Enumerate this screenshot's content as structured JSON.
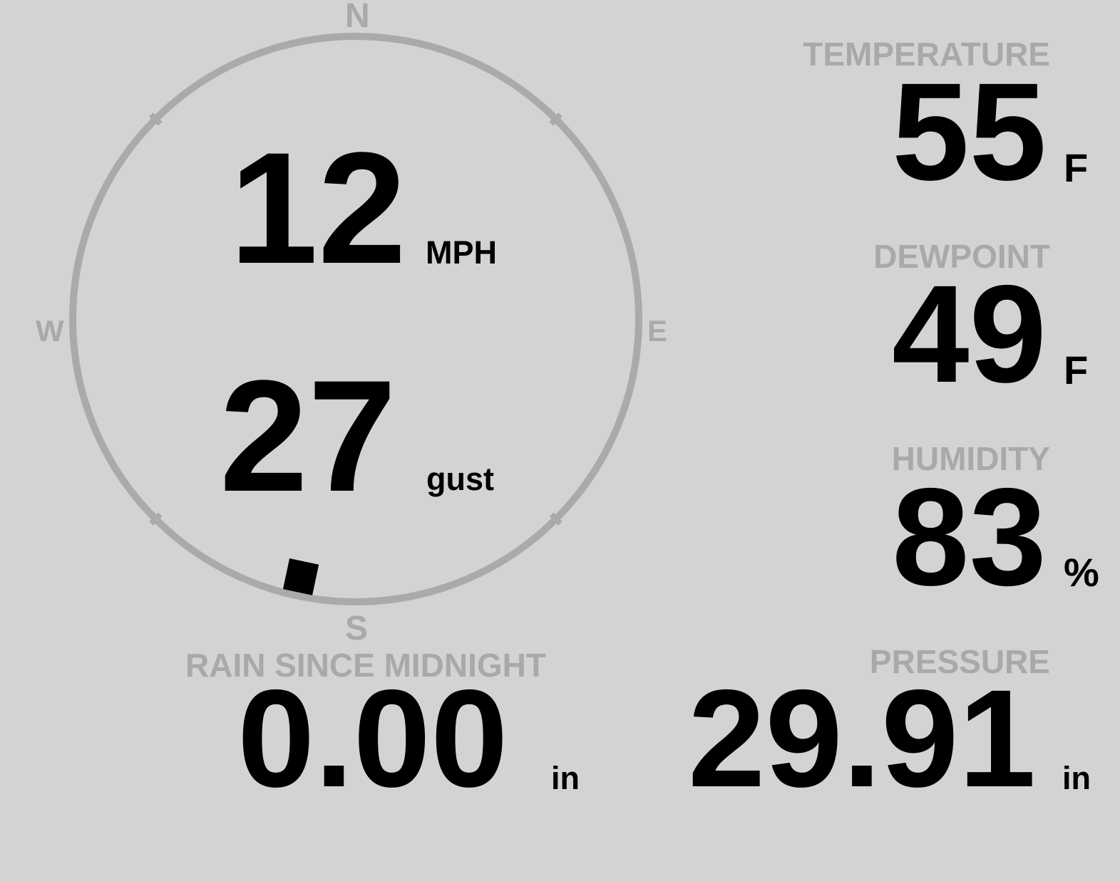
{
  "wind": {
    "speed": "12",
    "speed_unit": "MPH",
    "gust": "27",
    "gust_label": "gust",
    "direction_degrees": 192,
    "compass": {
      "north": "N",
      "east": "E",
      "south": "S",
      "west": "W"
    }
  },
  "temperature": {
    "label": "TEMPERATURE",
    "value": "55",
    "unit": "F"
  },
  "dewpoint": {
    "label": "DEWPOINT",
    "value": "49",
    "unit": "F"
  },
  "humidity": {
    "label": "HUMIDITY",
    "value": "83",
    "unit": "%"
  },
  "pressure": {
    "label": "PRESSURE",
    "value": "29.91",
    "unit": "in"
  },
  "rain": {
    "label": "RAIN SINCE MIDNIGHT",
    "value": "0.00",
    "unit": "in"
  },
  "colors": {
    "background": "#d3d3d3",
    "label": "#a9a9a9",
    "value": "#000000",
    "dial": "#aaaaaa"
  }
}
